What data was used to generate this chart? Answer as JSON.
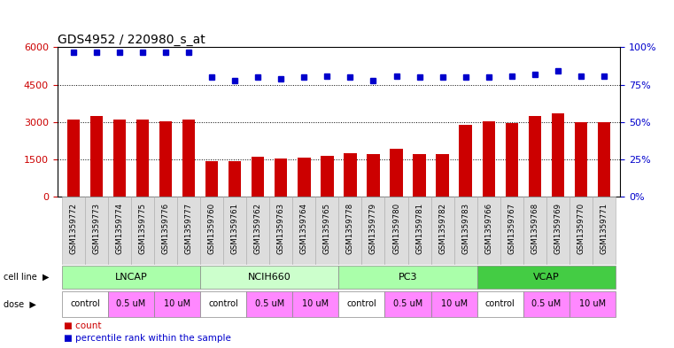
{
  "title": "GDS4952 / 220980_s_at",
  "samples": [
    "GSM1359772",
    "GSM1359773",
    "GSM1359774",
    "GSM1359775",
    "GSM1359776",
    "GSM1359777",
    "GSM1359760",
    "GSM1359761",
    "GSM1359762",
    "GSM1359763",
    "GSM1359764",
    "GSM1359765",
    "GSM1359778",
    "GSM1359779",
    "GSM1359780",
    "GSM1359781",
    "GSM1359782",
    "GSM1359783",
    "GSM1359766",
    "GSM1359767",
    "GSM1359768",
    "GSM1359769",
    "GSM1359770",
    "GSM1359771"
  ],
  "counts": [
    3100,
    3250,
    3100,
    3100,
    3050,
    3100,
    1430,
    1450,
    1600,
    1530,
    1570,
    1650,
    1750,
    1730,
    1950,
    1730,
    1730,
    2900,
    3050,
    2950,
    3250,
    3350,
    3000,
    3000
  ],
  "percentile_ranks": [
    97,
    97,
    97,
    97,
    97,
    97,
    80,
    78,
    80,
    79,
    80,
    81,
    80,
    78,
    81,
    80,
    80,
    80,
    80,
    81,
    82,
    84,
    81,
    81
  ],
  "bar_color": "#cc0000",
  "dot_color": "#0000cc",
  "ylim_left": [
    0,
    6000
  ],
  "ylim_right": [
    0,
    100
  ],
  "yticks_left": [
    0,
    1500,
    3000,
    4500,
    6000
  ],
  "yticks_right": [
    0,
    25,
    50,
    75,
    100
  ],
  "cell_lines": [
    {
      "name": "LNCAP",
      "start": 0,
      "end": 6,
      "color": "#aaffaa"
    },
    {
      "name": "NCIH660",
      "start": 6,
      "end": 12,
      "color": "#ccffcc"
    },
    {
      "name": "PC3",
      "start": 12,
      "end": 18,
      "color": "#aaffaa"
    },
    {
      "name": "VCAP",
      "start": 18,
      "end": 24,
      "color": "#44cc44"
    }
  ],
  "dose_groups": [
    {
      "name": "control",
      "start": 0,
      "end": 2,
      "color": "#ffffff"
    },
    {
      "name": "0.5 uM",
      "start": 2,
      "end": 4,
      "color": "#ff88ff"
    },
    {
      "name": "10 uM",
      "start": 4,
      "end": 6,
      "color": "#ff88ff"
    },
    {
      "name": "control",
      "start": 6,
      "end": 8,
      "color": "#ffffff"
    },
    {
      "name": "0.5 uM",
      "start": 8,
      "end": 10,
      "color": "#ff88ff"
    },
    {
      "name": "10 uM",
      "start": 10,
      "end": 12,
      "color": "#ff88ff"
    },
    {
      "name": "control",
      "start": 12,
      "end": 14,
      "color": "#ffffff"
    },
    {
      "name": "0.5 uM",
      "start": 14,
      "end": 16,
      "color": "#ff88ff"
    },
    {
      "name": "10 uM",
      "start": 16,
      "end": 18,
      "color": "#ff88ff"
    },
    {
      "name": "control",
      "start": 18,
      "end": 20,
      "color": "#ffffff"
    },
    {
      "name": "0.5 uM",
      "start": 20,
      "end": 22,
      "color": "#ff88ff"
    },
    {
      "name": "10 uM",
      "start": 22,
      "end": 24,
      "color": "#ff88ff"
    }
  ],
  "legend_count_color": "#cc0000",
  "legend_dot_color": "#0000cc",
  "background_color": "#ffffff",
  "tick_label_color": "#cc0000",
  "right_tick_color": "#0000cc",
  "title_fontsize": 10,
  "bar_width": 0.55
}
